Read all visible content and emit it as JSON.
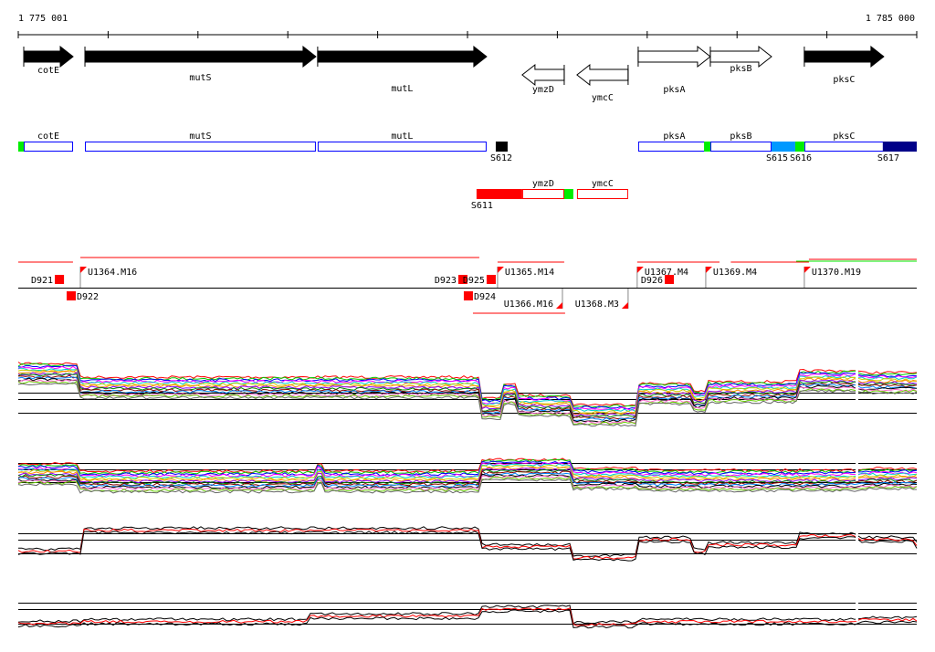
{
  "ruler": {
    "start_label": "1 775 001",
    "end_label": "1 785 000",
    "start": 1775001,
    "end": 1785000
  },
  "genes": [
    {
      "name": "cotE",
      "start": 1775062,
      "end": 1775611,
      "strand": "+",
      "filled": true
    },
    {
      "name": "mutS",
      "start": 1775743,
      "end": 1778313,
      "strand": "+",
      "filled": true
    },
    {
      "name": "mutL",
      "start": 1778333,
      "end": 1780213,
      "strand": "+",
      "filled": true
    },
    {
      "name": "ymzD",
      "start": 1780609,
      "end": 1781077,
      "strand": "-",
      "filled": false
    },
    {
      "name": "ymcC",
      "start": 1781219,
      "end": 1781788,
      "strand": "-",
      "filled": false
    },
    {
      "name": "pksA",
      "start": 1781900,
      "end": 1782703,
      "strand": "+",
      "filled": false
    },
    {
      "name": "pksB",
      "start": 1782703,
      "end": 1783384,
      "strand": "+",
      "filled": false
    },
    {
      "name": "pksC",
      "start": 1783749,
      "end": 1784633,
      "strand": "+",
      "filled": true
    }
  ],
  "annotation_boxes": [
    {
      "name": "cotE",
      "start": 1775062,
      "end": 1775611,
      "row": 1,
      "border": "#0000ff"
    },
    {
      "name": "mutS",
      "start": 1775743,
      "end": 1778313,
      "row": 1,
      "border": "#0000ff"
    },
    {
      "name": "mutL",
      "start": 1778333,
      "end": 1780213,
      "row": 1,
      "border": "#0000ff"
    },
    {
      "name": "pksA",
      "start": 1781900,
      "end": 1782703,
      "row": 1,
      "border": "#0000ff"
    },
    {
      "name": "pksB",
      "start": 1782703,
      "end": 1783384,
      "row": 1,
      "border": "#0000ff"
    },
    {
      "name": "pksC",
      "start": 1783749,
      "end": 1784633,
      "row": 1,
      "border": "#0000ff"
    },
    {
      "name": "ymzD",
      "start": 1780609,
      "end": 1781077,
      "row": 2,
      "border": "#ff0000"
    },
    {
      "name": "ymcC",
      "start": 1781219,
      "end": 1781788,
      "row": 2,
      "border": "#ff0000"
    }
  ],
  "segments": [
    {
      "label": "",
      "start": 1775001,
      "end": 1775062,
      "row": 1,
      "color": "#00ee00"
    },
    {
      "label": "S612",
      "start": 1780315,
      "end": 1780447,
      "row": 1,
      "color": "#000000"
    },
    {
      "label": "",
      "start": 1782633,
      "end": 1782703,
      "row": 1,
      "color": "#00ee00"
    },
    {
      "label": "S615",
      "start": 1783384,
      "end": 1783648,
      "row": 1,
      "color": "#0099ff"
    },
    {
      "label": "S616",
      "start": 1783648,
      "end": 1783749,
      "row": 1,
      "color": "#00ee00"
    },
    {
      "label": "S617",
      "start": 1784623,
      "end": 1785000,
      "row": 1,
      "color": "#000088"
    },
    {
      "label": "S611",
      "start": 1780101,
      "end": 1780609,
      "row": 2,
      "color": "#ff0000"
    },
    {
      "label": "",
      "start": 1781077,
      "end": 1781178,
      "row": 2,
      "color": "#00ee00"
    }
  ],
  "transcripts": {
    "upper_lines": [
      [
        1775001,
        1775610
      ],
      [
        1775692,
        1780132
      ],
      [
        1780335,
        1781077
      ],
      [
        1781889,
        1782805
      ],
      [
        1782931,
        1783800
      ],
      [
        1783800,
        1785000
      ]
    ],
    "lower_lines": [
      [
        1780061,
        1781087
      ]
    ],
    "downstream": [
      {
        "label": "D921",
        "pos": 1775510,
        "side": "up"
      },
      {
        "label": "D922",
        "pos": 1775641,
        "side": "down"
      },
      {
        "label": "D923",
        "pos": 1780000,
        "side": "up"
      },
      {
        "label": "D924",
        "pos": 1780061,
        "side": "down"
      },
      {
        "label": "D925",
        "pos": 1780315,
        "side": "up"
      },
      {
        "label": "D926",
        "pos": 1782297,
        "side": "up"
      }
    ],
    "upstream": [
      {
        "label": "U1364.M16",
        "pos": 1775692,
        "side": "up"
      },
      {
        "label": "U1365.M14",
        "pos": 1780335,
        "side": "up"
      },
      {
        "label": "U1366.M16",
        "pos": 1781057,
        "side": "down"
      },
      {
        "label": "U1367.M4",
        "pos": 1781889,
        "side": "up"
      },
      {
        "label": "U1368.M3",
        "pos": 1781788,
        "side": "down"
      },
      {
        "label": "U1369.M4",
        "pos": 1782652,
        "side": "up"
      },
      {
        "label": "U1370.M19",
        "pos": 1783749,
        "side": "up"
      }
    ]
  },
  "signal_colors": [
    "#ff0000",
    "#00cc00",
    "#0000ff",
    "#ff00ff",
    "#00cccc",
    "#cccc00",
    "#ff8800",
    "#8800ff",
    "#008800",
    "#880000",
    "#0088ff",
    "#000000",
    "#ff66cc",
    "#66cc00",
    "#666666"
  ]
}
